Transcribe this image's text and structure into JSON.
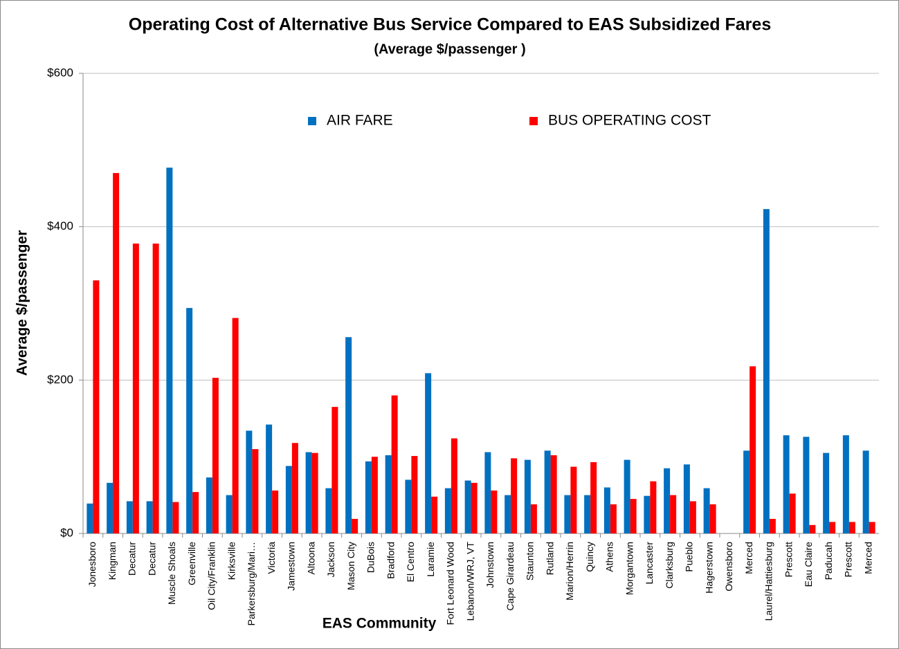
{
  "chart_data": {
    "type": "bar",
    "title": "Operating Cost of Alternative Bus Service Compared to EAS Subsidized Fares",
    "subtitle": "(Average $/passenger )",
    "y_label": "Average $/passenger",
    "x_label": "EAS Community",
    "categories": [
      "Jonesboro",
      "Kingman",
      "Decatur",
      "Decatur",
      "Muscle Shoals",
      "Greenville",
      "Oil City/Franklin",
      "Kirksville",
      "Parkersburg/Mari…",
      "Victoria",
      "Jamestown",
      "Altoona",
      "Jackson",
      "Mason City",
      "DuBois",
      "Bradford",
      "El Centro",
      "Laramie",
      "Fort Leonard Wood",
      "Lebanon/WRJ, VT",
      "Johnstown",
      "Cape Girardeau",
      "Staunton",
      "Rutland",
      "Marion/Herrin",
      "Quincy",
      "Athens",
      "Morgantown",
      "Lancaster",
      "Clarksburg",
      "Pueblo",
      "Hagerstown",
      "Owensboro",
      "Merced",
      "Laurel/Hattiesburg",
      "Prescott",
      "Eau Claire",
      "Paducah",
      "Prescott",
      "Merced"
    ],
    "series": [
      {
        "name": "AIR FARE",
        "color": "#0070c0",
        "values": [
          39,
          66,
          42,
          42,
          477,
          294,
          73,
          50,
          134,
          142,
          88,
          106,
          59,
          256,
          94,
          102,
          70,
          209,
          59,
          69,
          106,
          50,
          96,
          108,
          50,
          50,
          60,
          96,
          49,
          85,
          90,
          59,
          0,
          108,
          423,
          128,
          126,
          105,
          128,
          108
        ]
      },
      {
        "name": "BUS OPERATING COST",
        "color": "#ff0000",
        "values": [
          330,
          470,
          378,
          378,
          41,
          54,
          203,
          281,
          110,
          56,
          118,
          105,
          165,
          19,
          100,
          180,
          101,
          48,
          124,
          66,
          56,
          98,
          38,
          102,
          87,
          93,
          38,
          45,
          68,
          50,
          42,
          38,
          0,
          218,
          19,
          52,
          11,
          15,
          15,
          15
        ]
      }
    ],
    "ylim": [
      0,
      600
    ],
    "yticks": [
      {
        "value": 0,
        "label": "$0"
      },
      {
        "value": 200,
        "label": "$200"
      },
      {
        "value": 400,
        "label": "$400"
      },
      {
        "value": 600,
        "label": "$600"
      }
    ],
    "grid": true,
    "legend": "top"
  }
}
